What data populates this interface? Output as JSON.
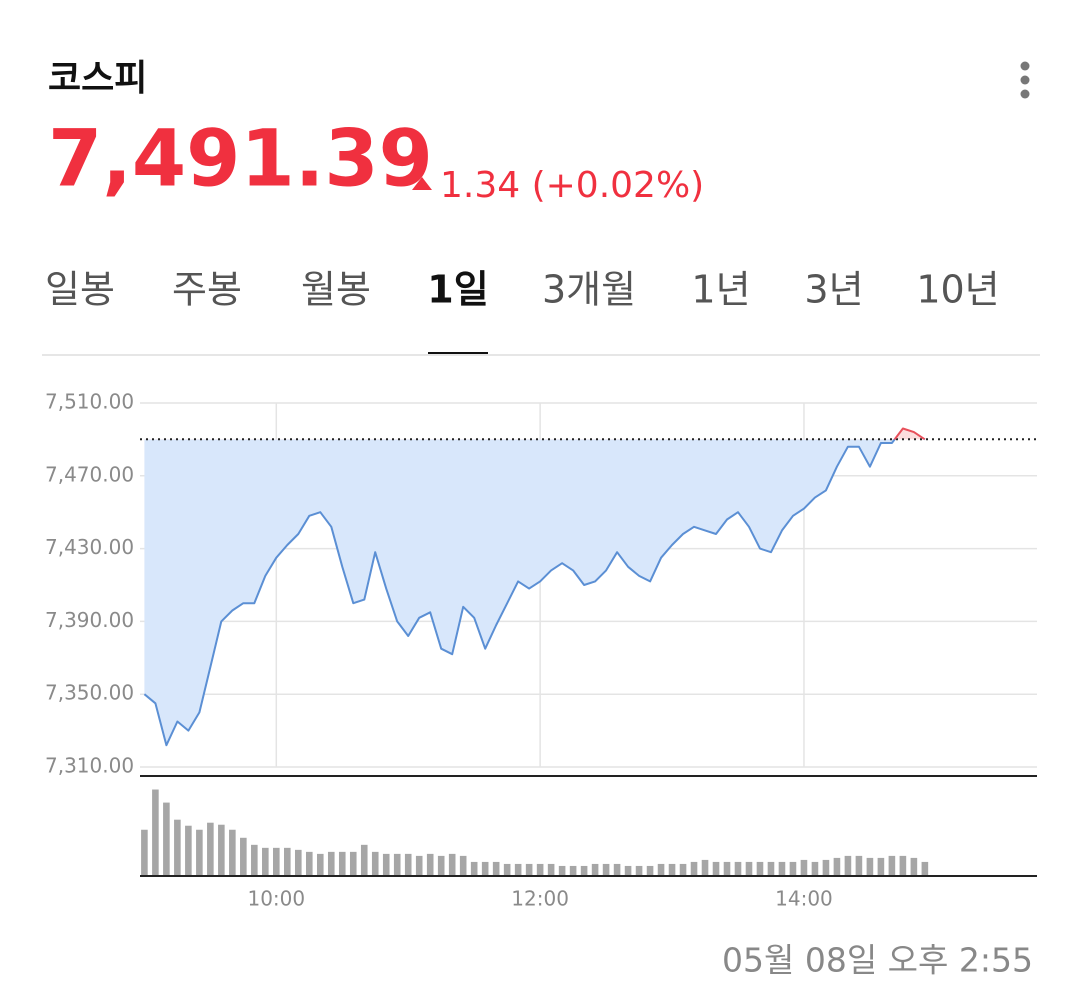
{
  "header": {
    "title": "코스피",
    "price": "7,491.39",
    "change": "1.34 (+0.02%)"
  },
  "tabs": {
    "items": [
      "일봉",
      "주봉",
      "월봉",
      "1일",
      "3개월",
      "1년",
      "3년",
      "10년"
    ],
    "active": 3
  },
  "chart_data": {
    "type": "line",
    "x": [
      540,
      545,
      550,
      555,
      560,
      565,
      570,
      575,
      580,
      585,
      590,
      595,
      600,
      605,
      610,
      615,
      620,
      625,
      630,
      635,
      640,
      645,
      650,
      655,
      660,
      665,
      670,
      675,
      680,
      685,
      690,
      695,
      700,
      705,
      710,
      715,
      720,
      725,
      730,
      735,
      740,
      745,
      750,
      755,
      760,
      765,
      770,
      775,
      780,
      785,
      790,
      795,
      800,
      805,
      810,
      815,
      820,
      825,
      830,
      835,
      840,
      845,
      850,
      855,
      860,
      865,
      870,
      875,
      880,
      885,
      890,
      895
    ],
    "series": [
      {
        "color": "#5b8fd4",
        "up_color": "#e8505b",
        "area_color": "#d8e7fb",
        "up_area_color": "#fbdede",
        "values": [
          7350,
          7345,
          7322,
          7335,
          7330,
          7340,
          7365,
          7390,
          7396,
          7400,
          7400,
          7415,
          7425,
          7432,
          7438,
          7448,
          7450,
          7442,
          7420,
          7400,
          7402,
          7428,
          7408,
          7390,
          7382,
          7392,
          7395,
          7375,
          7372,
          7398,
          7392,
          7375,
          7388,
          7400,
          7412,
          7408,
          7412,
          7418,
          7422,
          7418,
          7410,
          7412,
          7418,
          7428,
          7420,
          7415,
          7412,
          7425,
          7432,
          7438,
          7442,
          7440,
          7438,
          7446,
          7450,
          7442,
          7430,
          7428,
          7440,
          7448,
          7452,
          7458,
          7462,
          7475,
          7486,
          7486,
          7475,
          7488,
          7488,
          7496,
          7494,
          7490
        ]
      }
    ],
    "prev_close": 7490.05,
    "volume": {
      "color": "#a6a6a6",
      "values": [
        46,
        86,
        73,
        56,
        50,
        46,
        53,
        51,
        46,
        38,
        31,
        28,
        28,
        28,
        26,
        24,
        22,
        24,
        24,
        24,
        31,
        24,
        22,
        22,
        22,
        20,
        22,
        20,
        22,
        20,
        14,
        14,
        14,
        12,
        12,
        12,
        12,
        12,
        10,
        10,
        10,
        12,
        12,
        12,
        10,
        10,
        10,
        12,
        12,
        12,
        14,
        16,
        14,
        14,
        14,
        14,
        14,
        14,
        14,
        14,
        16,
        14,
        16,
        18,
        20,
        20,
        18,
        18,
        20,
        20,
        18,
        14
      ]
    },
    "xlim": [
      538,
      946
    ],
    "ylim": [
      7310,
      7510
    ],
    "xticks": [
      {
        "value": 600,
        "label": "10:00"
      },
      {
        "value": 720,
        "label": "12:00"
      },
      {
        "value": 840,
        "label": "14:00"
      }
    ],
    "yticks": [
      {
        "value": 7310,
        "label": "7,310.00"
      },
      {
        "value": 7350,
        "label": "7,350.00"
      },
      {
        "value": 7390,
        "label": "7,390.00"
      },
      {
        "value": 7430,
        "label": "7,430.00"
      },
      {
        "value": 7470,
        "label": "7,470.00"
      },
      {
        "value": 7510,
        "label": "7,510.00"
      }
    ],
    "grid": true
  },
  "timestamp": "05월 08일 오후 2:55"
}
